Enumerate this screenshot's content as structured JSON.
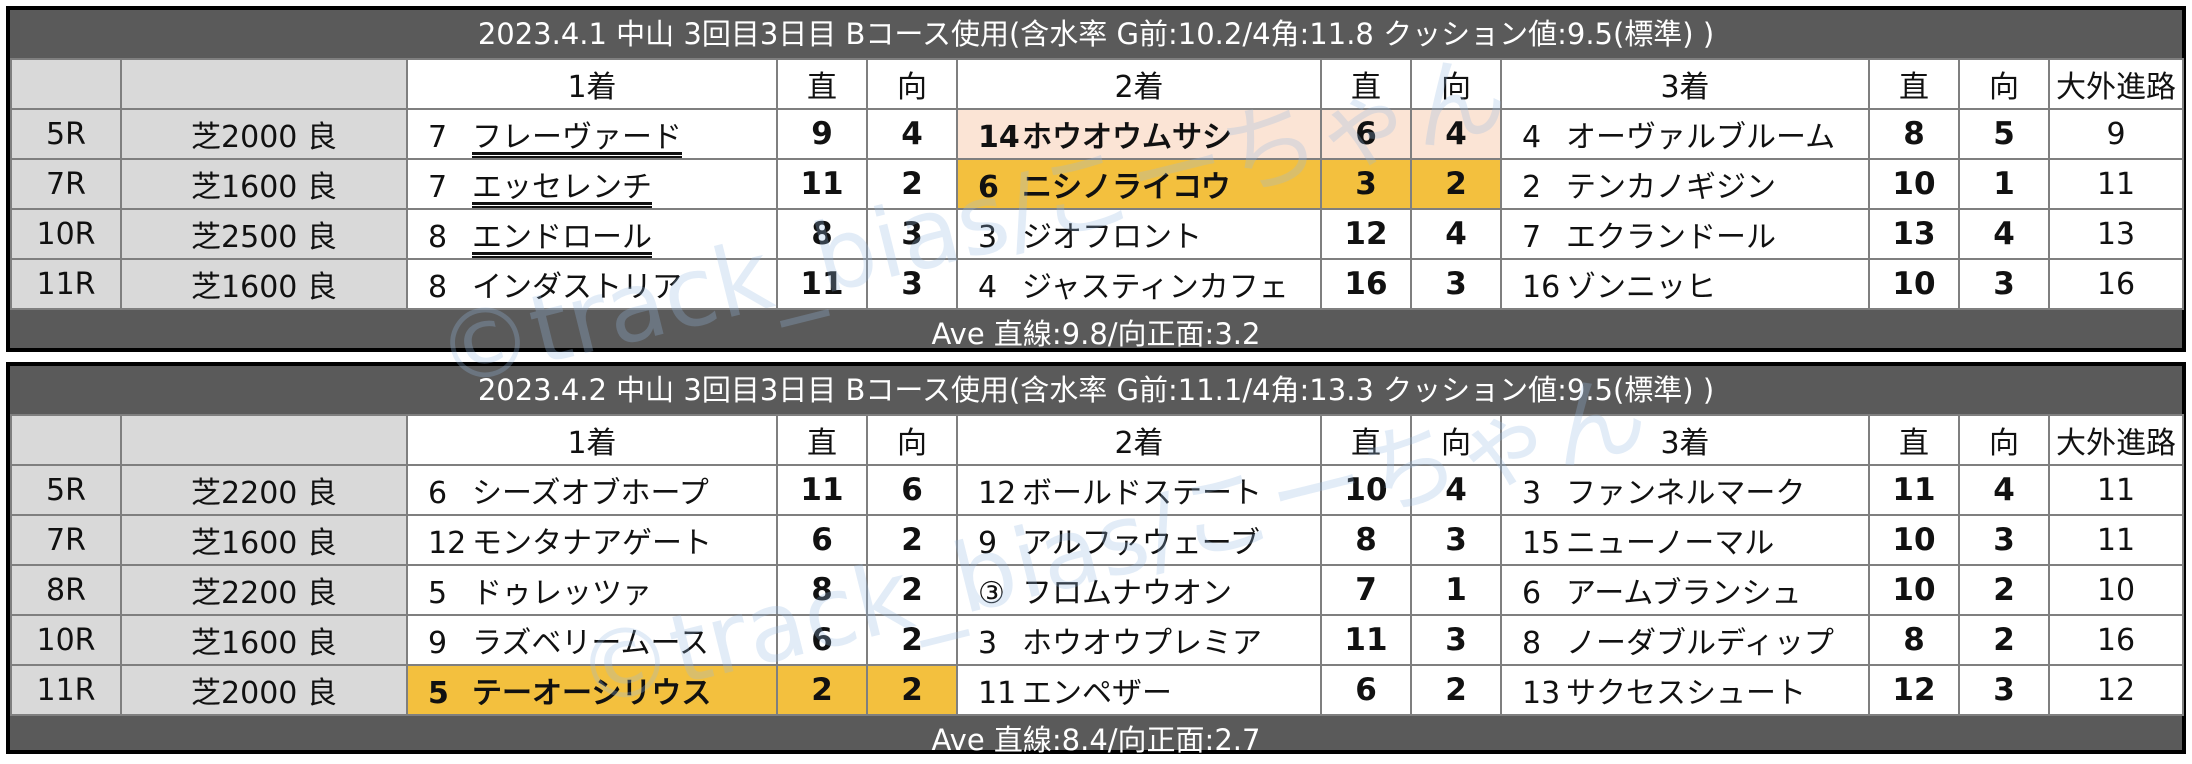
{
  "accent_colors": {
    "winner_highlight": "#f3c03e",
    "second_highlight": "#fbe4d5",
    "frame": "#5a5a5a",
    "label_cells": "#d9d9d9"
  },
  "columns": {
    "first": "1着",
    "straight": "直",
    "backstretch": "向",
    "second": "2着",
    "third": "3着",
    "outside": "大外進路"
  },
  "watermark": "©track_bias/こーちゃん",
  "days": [
    {
      "title": "2023.4.1 中山 3回目3日目 Bコース使用(含水率 G前:10.2/4角:11.8 クッション値:9.5(標準) )",
      "average": "Ave 直線:9.8/向正面:3.2",
      "races": [
        {
          "race": "5R",
          "course": "芝2000 良",
          "first": {
            "num": "7",
            "name": "フレーヴァード",
            "straight": "9",
            "back": "4"
          },
          "second": {
            "num": "14",
            "name": "ホウオウムサシ",
            "straight": "6",
            "back": "4"
          },
          "third": {
            "num": "4",
            "name": "オーヴァルブルーム",
            "straight": "8",
            "back": "5"
          },
          "outside": "9"
        },
        {
          "race": "7R",
          "course": "芝1600 良",
          "first": {
            "num": "7",
            "name": "エッセレンチ",
            "straight": "11",
            "back": "2"
          },
          "second": {
            "num": "6",
            "name": "ニシノライコウ",
            "straight": "3",
            "back": "2"
          },
          "third": {
            "num": "2",
            "name": "テンカノギジン",
            "straight": "10",
            "back": "1"
          },
          "outside": "11"
        },
        {
          "race": "10R",
          "course": "芝2500 良",
          "first": {
            "num": "8",
            "name": "エンドロール",
            "straight": "8",
            "back": "3"
          },
          "second": {
            "num": "3",
            "name": "ジオフロント",
            "straight": "12",
            "back": "4"
          },
          "third": {
            "num": "7",
            "name": "エクランドール",
            "straight": "13",
            "back": "4"
          },
          "outside": "13"
        },
        {
          "race": "11R",
          "course": "芝1600 良",
          "first": {
            "num": "8",
            "name": "インダストリア",
            "straight": "11",
            "back": "3"
          },
          "second": {
            "num": "4",
            "name": "ジャスティンカフェ",
            "straight": "16",
            "back": "3"
          },
          "third": {
            "num": "16",
            "name": "ゾンニッヒ",
            "straight": "10",
            "back": "3"
          },
          "outside": "16"
        }
      ]
    },
    {
      "title": "2023.4.2 中山 3回目3日目 Bコース使用(含水率 G前:11.1/4角:13.3 クッション値:9.5(標準) )",
      "average": "Ave 直線:8.4/向正面:2.7",
      "races": [
        {
          "race": "5R",
          "course": "芝2200 良",
          "first": {
            "num": "6",
            "name": "シーズオブホープ",
            "straight": "11",
            "back": "6"
          },
          "second": {
            "num": "12",
            "name": "ボールドステート",
            "straight": "10",
            "back": "4"
          },
          "third": {
            "num": "3",
            "name": "ファンネルマーク",
            "straight": "11",
            "back": "4"
          },
          "outside": "11"
        },
        {
          "race": "7R",
          "course": "芝1600 良",
          "first": {
            "num": "12",
            "name": "モンタナアゲート",
            "straight": "6",
            "back": "2"
          },
          "second": {
            "num": "9",
            "name": "アルファウェーブ",
            "straight": "8",
            "back": "3"
          },
          "third": {
            "num": "15",
            "name": "ニューノーマル",
            "straight": "10",
            "back": "3"
          },
          "outside": "11"
        },
        {
          "race": "8R",
          "course": "芝2200 良",
          "first": {
            "num": "5",
            "name": "ドゥレッツァ",
            "straight": "8",
            "back": "2"
          },
          "second": {
            "num": "③",
            "name": "フロムナウオン",
            "straight": "7",
            "back": "1"
          },
          "third": {
            "num": "6",
            "name": "アームブランシュ",
            "straight": "10",
            "back": "2"
          },
          "outside": "10"
        },
        {
          "race": "10R",
          "course": "芝1600 良",
          "first": {
            "num": "9",
            "name": "ラズベリームース",
            "straight": "6",
            "back": "2"
          },
          "second": {
            "num": "3",
            "name": "ホウオウプレミア",
            "straight": "11",
            "back": "3"
          },
          "third": {
            "num": "8",
            "name": "ノーダブルディップ",
            "straight": "8",
            "back": "2"
          },
          "outside": "16"
        },
        {
          "race": "11R",
          "course": "芝2000 良",
          "first": {
            "num": "5",
            "name": "テーオーシリウス",
            "straight": "2",
            "back": "2"
          },
          "second": {
            "num": "11",
            "name": "エンペザー",
            "straight": "6",
            "back": "2"
          },
          "third": {
            "num": "13",
            "name": "サクセスシュート",
            "straight": "12",
            "back": "3"
          },
          "outside": "12"
        }
      ]
    }
  ]
}
